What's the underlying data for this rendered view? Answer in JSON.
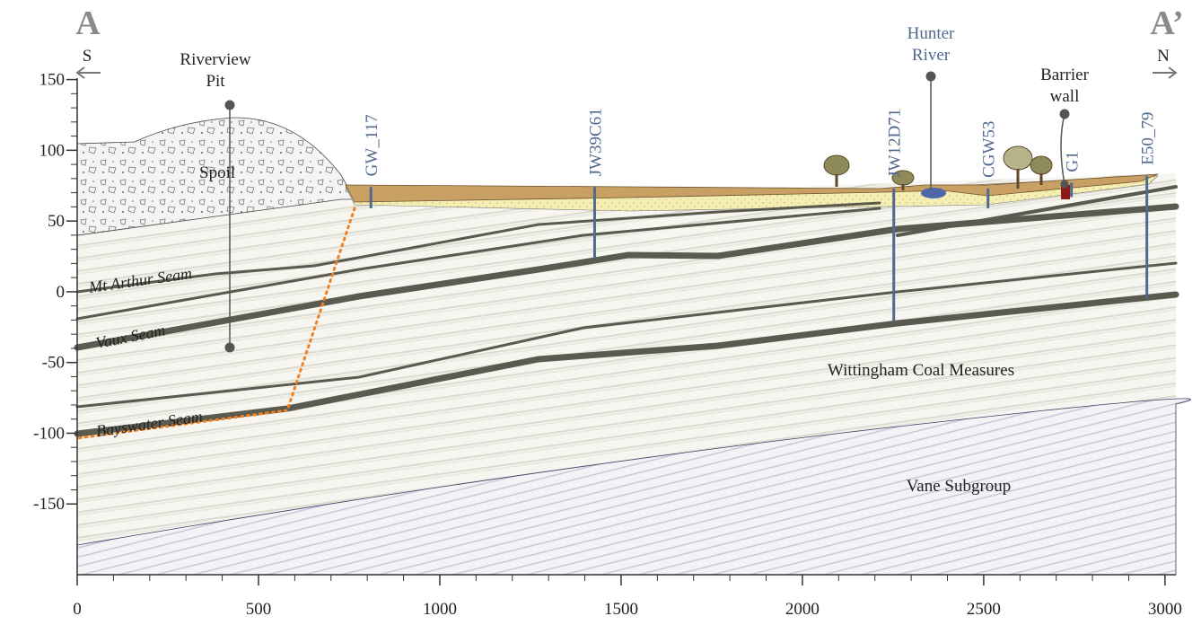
{
  "header": {
    "left_section": "A",
    "right_section": "A’",
    "left_direction": "S",
    "right_direction": "N"
  },
  "axes": {
    "xlim": [
      0,
      3030
    ],
    "ylim": [
      -200,
      151
    ],
    "xticks": [
      0,
      500,
      1000,
      1500,
      2000,
      2500,
      3000
    ],
    "yticks": [
      150,
      100,
      50,
      0,
      -50,
      -100,
      -150
    ]
  },
  "annotations": [
    {
      "lines": [
        "Riverview",
        "Pit"
      ]
    },
    {
      "lines": [
        "Hunter",
        "River"
      ]
    },
    {
      "lines": [
        "Barrier",
        "wall"
      ]
    }
  ],
  "units": [
    "Spoil",
    "Wittingham Coal Measures",
    "Vane Subgroup"
  ],
  "seams": [
    "Mt Arthur Seam",
    "Vaux Seam",
    "Bayswater Seam"
  ],
  "bores": [
    {
      "label": "GW_117",
      "x": 810,
      "top": 74,
      "bottom": 59
    },
    {
      "label": "JW39C61",
      "x": 1427,
      "top": 74,
      "bottom": 24
    },
    {
      "label": "JW12D71",
      "x": 2252,
      "top": 73,
      "bottom": -21
    },
    {
      "label": "CGW53",
      "x": 2512,
      "top": 73,
      "bottom": 59
    },
    {
      "label": "G1",
      "x": 2742,
      "top": 77,
      "bottom": 67
    },
    {
      "label": "E50_79",
      "x": 2950,
      "top": 82,
      "bottom": -5
    }
  ]
}
